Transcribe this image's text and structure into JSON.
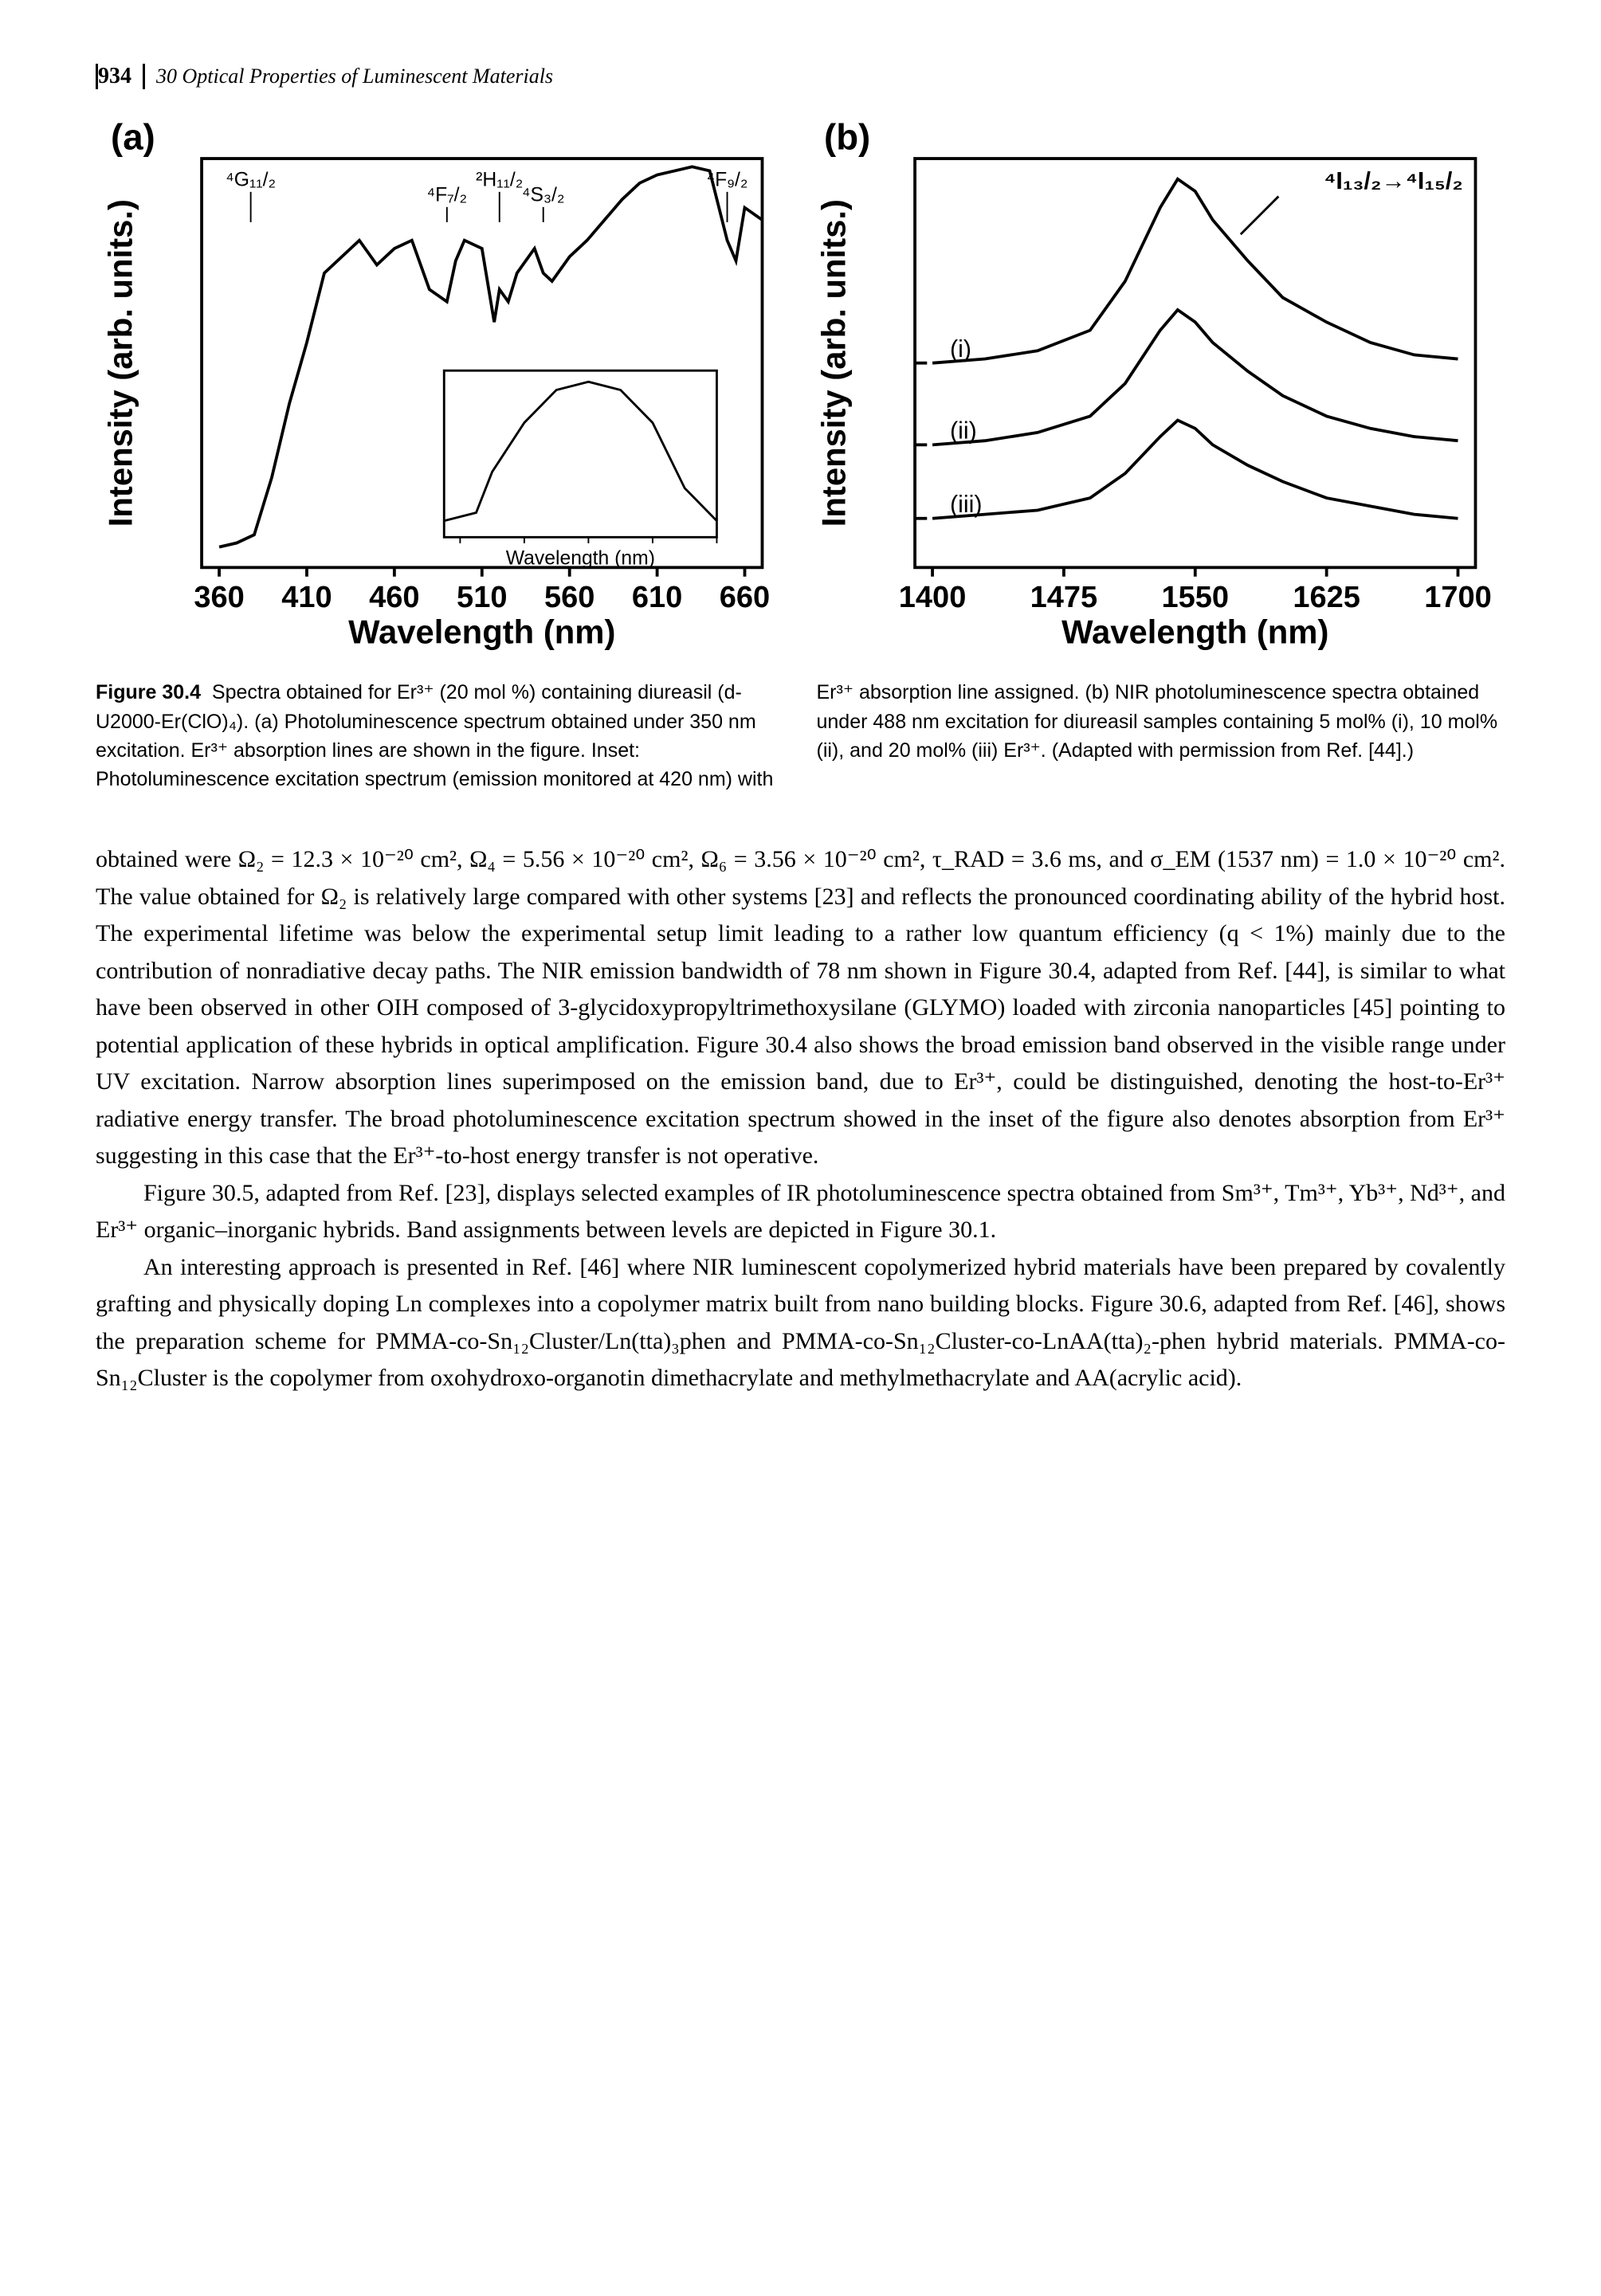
{
  "header": {
    "page_number": "934",
    "chapter_title": "30 Optical Properties of Luminescent Materials"
  },
  "figure": {
    "panel_a": {
      "label": "(a)",
      "type": "line",
      "xlabel": "Wavelength (nm)",
      "ylabel": "Intensity (arb. units.)",
      "xlim": [
        350,
        670
      ],
      "xticks": [
        360,
        410,
        460,
        510,
        560,
        610,
        660
      ],
      "line_color": "#000000",
      "line_width": 2,
      "background_color": "#ffffff",
      "main_curve_x": [
        360,
        370,
        380,
        390,
        400,
        410,
        420,
        430,
        440,
        450,
        460,
        470,
        480,
        490,
        495,
        500,
        510,
        517,
        520,
        525,
        530,
        540,
        545,
        550,
        560,
        570,
        580,
        590,
        600,
        610,
        620,
        630,
        640,
        650,
        655,
        660,
        670
      ],
      "main_curve_y": [
        5,
        6,
        8,
        22,
        40,
        55,
        72,
        76,
        80,
        74,
        78,
        80,
        68,
        65,
        75,
        80,
        78,
        60,
        68,
        65,
        72,
        78,
        72,
        70,
        76,
        80,
        85,
        90,
        94,
        96,
        97,
        98,
        97,
        80,
        75,
        88,
        85
      ],
      "absorption_dips_x": [
        378,
        490,
        520,
        545,
        650
      ],
      "absorption_labels": [
        "⁴G₁₁/₂",
        "⁴F₇/₂",
        "²H₁₁/₂",
        "⁴S₃/₂",
        "⁴F₉/₂"
      ],
      "inset": {
        "xlabel": "Wavelength (nm)",
        "x_range": [
          350,
          520
        ],
        "curve_x": [
          350,
          370,
          380,
          400,
          420,
          440,
          460,
          480,
          490,
          500,
          520
        ],
        "curve_y": [
          10,
          15,
          40,
          70,
          90,
          95,
          90,
          70,
          50,
          30,
          10
        ]
      }
    },
    "panel_b": {
      "label": "(b)",
      "type": "line",
      "xlabel": "Wavelength (nm)",
      "ylabel": "Intensity (arb. units.)",
      "xlim": [
        1390,
        1710
      ],
      "xticks": [
        1400,
        1475,
        1550,
        1625,
        1700
      ],
      "line_color": "#000000",
      "line_width": 2,
      "background_color": "#ffffff",
      "transition_label": "⁴I₁₃/₂→⁴I₁₅/₂",
      "curves": [
        {
          "label": "(i)",
          "baseline": 50,
          "x": [
            1400,
            1430,
            1460,
            1490,
            1510,
            1530,
            1540,
            1550,
            1560,
            1580,
            1600,
            1625,
            1650,
            1675,
            1700
          ],
          "y": [
            50,
            51,
            53,
            58,
            70,
            88,
            95,
            92,
            85,
            75,
            66,
            60,
            55,
            52,
            51
          ]
        },
        {
          "label": "(ii)",
          "baseline": 30,
          "x": [
            1400,
            1430,
            1460,
            1490,
            1510,
            1530,
            1540,
            1550,
            1560,
            1580,
            1600,
            1625,
            1650,
            1675,
            1700
          ],
          "y": [
            30,
            31,
            33,
            37,
            45,
            58,
            63,
            60,
            55,
            48,
            42,
            37,
            34,
            32,
            31
          ]
        },
        {
          "label": "(iii)",
          "baseline": 12,
          "x": [
            1400,
            1430,
            1460,
            1490,
            1510,
            1530,
            1540,
            1550,
            1560,
            1580,
            1600,
            1625,
            1650,
            1675,
            1700
          ],
          "y": [
            12,
            13,
            14,
            17,
            23,
            32,
            36,
            34,
            30,
            25,
            21,
            17,
            15,
            13,
            12
          ]
        }
      ]
    },
    "caption_label": "Figure 30.4",
    "caption_text": "Spectra obtained for Er³⁺ (20 mol %) containing diureasil (d-U2000-Er(ClO)₄). (a) Photoluminescence spectrum obtained under 350 nm excitation. Er³⁺ absorption lines are shown in the figure. Inset: Photoluminescence excitation spectrum (emission monitored at 420 nm) with Er³⁺ absorption line assigned. (b) NIR photoluminescence spectra obtained under 488 nm excitation for diureasil samples containing 5 mol% (i), 10 mol% (ii), and 20 mol% (iii) Er³⁺. (Adapted with permission from Ref. [44].)"
  },
  "body": {
    "p1": "obtained were Ω₂ = 12.3 × 10⁻²⁰ cm², Ω₄ = 5.56 × 10⁻²⁰ cm², Ω₆ = 3.56 × 10⁻²⁰ cm², τ_RAD = 3.6 ms, and σ_EM (1537 nm) = 1.0 × 10⁻²⁰ cm². The value obtained for Ω₂ is relatively large compared with other systems [23] and reflects the pronounced coordinating ability of the hybrid host. The experimental lifetime was below the experimental setup limit leading to a rather low quantum efficiency (q < 1%) mainly due to the contribution of nonradiative decay paths. The NIR emission bandwidth of 78 nm shown in Figure 30.4, adapted from Ref. [44], is similar to what have been observed in other OIH composed of 3-glycidoxypropyltrimethoxysilane (GLYMO) loaded with zirconia nanoparticles [45] pointing to potential application of these hybrids in optical amplification. Figure 30.4 also shows the broad emission band observed in the visible range under UV excitation. Narrow absorption lines superimposed on the emission band, due to Er³⁺, could be distinguished, denoting the host-to-Er³⁺ radiative energy transfer. The broad photoluminescence excitation spectrum showed in the inset of the figure also denotes absorption from Er³⁺ suggesting in this case that the Er³⁺-to-host energy transfer is not operative.",
    "p2": "Figure 30.5, adapted from Ref. [23], displays selected examples of IR photoluminescence spectra obtained from Sm³⁺, Tm³⁺, Yb³⁺, Nd³⁺, and Er³⁺ organic–inorganic hybrids. Band assignments between levels are depicted in Figure 30.1.",
    "p3": "An interesting approach is presented in Ref. [46] where NIR luminescent copolymerized hybrid materials have been prepared by covalently grafting and physically doping Ln complexes into a copolymer matrix built from nano building blocks. Figure 30.6, adapted from Ref. [46], shows the preparation scheme for PMMA-co-Sn₁₂Cluster/Ln(tta)₃phen and PMMA-co-Sn₁₂Cluster-co-LnAA(tta)₂-phen hybrid materials. PMMA-co-Sn₁₂Cluster is the copolymer from oxohydroxo-organotin dimethacrylate and methylmethacrylate and AA(acrylic acid)."
  }
}
